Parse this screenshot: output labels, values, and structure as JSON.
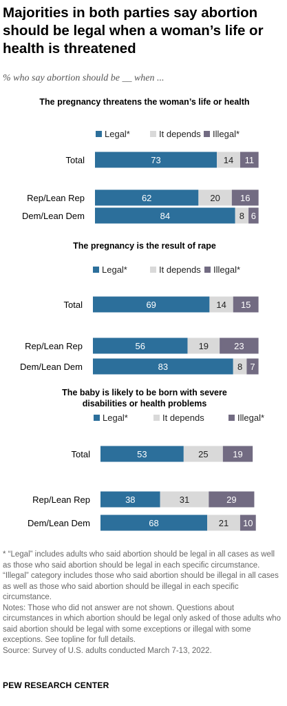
{
  "title": "Majorities in both parties say abortion should be legal when a woman’s life or health is threatened",
  "subtitle": "% who say abortion should be __ when ...",
  "legend": {
    "legal": "Legal*",
    "depends": "It depends",
    "illegal": "Illegal*"
  },
  "colors": {
    "legal": "#2c6f9b",
    "depends": "#d9d9d9",
    "illegal": "#726b82"
  },
  "chart_data": [
    {
      "type": "bar",
      "stacked": true,
      "orientation": "horizontal",
      "title": "The pregnancy threatens the woman’s life or health",
      "categories": [
        "Total",
        "Rep/Lean Rep",
        "Dem/Lean Dem"
      ],
      "series": [
        {
          "name": "Legal*",
          "values": [
            73,
            62,
            84
          ]
        },
        {
          "name": "It depends",
          "values": [
            14,
            20,
            8
          ]
        },
        {
          "name": "Illegal*",
          "values": [
            11,
            16,
            6
          ]
        }
      ],
      "legend_position": "top"
    },
    {
      "type": "bar",
      "stacked": true,
      "orientation": "horizontal",
      "title": "The pregnancy is the result of rape",
      "categories": [
        "Total",
        "Rep/Lean Rep",
        "Dem/Lean Dem"
      ],
      "series": [
        {
          "name": "Legal*",
          "values": [
            69,
            56,
            83
          ]
        },
        {
          "name": "It depends",
          "values": [
            14,
            19,
            8
          ]
        },
        {
          "name": "Illegal*",
          "values": [
            15,
            23,
            7
          ]
        }
      ],
      "legend_position": "top"
    },
    {
      "type": "bar",
      "stacked": true,
      "orientation": "horizontal",
      "title": "The baby is likely to be born with severe disabilities or health problems",
      "categories": [
        "Total",
        "Rep/Lean Rep",
        "Dem/Lean Dem"
      ],
      "series": [
        {
          "name": "Legal*",
          "values": [
            53,
            38,
            68
          ]
        },
        {
          "name": "It depends",
          "values": [
            25,
            31,
            21
          ]
        },
        {
          "name": "Illegal*",
          "values": [
            19,
            29,
            10
          ]
        }
      ],
      "legend_position": "top"
    }
  ],
  "footnote": [
    "* “Legal” includes adults who said abortion should be legal in all cases as well as those who said abortion should be legal in each specific circumstance. “Illegal” category includes those who said abortion should be illegal in all cases as well as those who said abortion should be illegal in each specific circumstance.",
    "Notes: Those who did not answer are not shown. Questions about circumstances in which abortion should be legal only asked of those adults who said abortion should be legal with some exceptions or illegal with some exceptions. See topline for full details.",
    "Source: Survey of U.S. adults conducted March 7-13, 2022."
  ],
  "source": "PEW RESEARCH CENTER"
}
